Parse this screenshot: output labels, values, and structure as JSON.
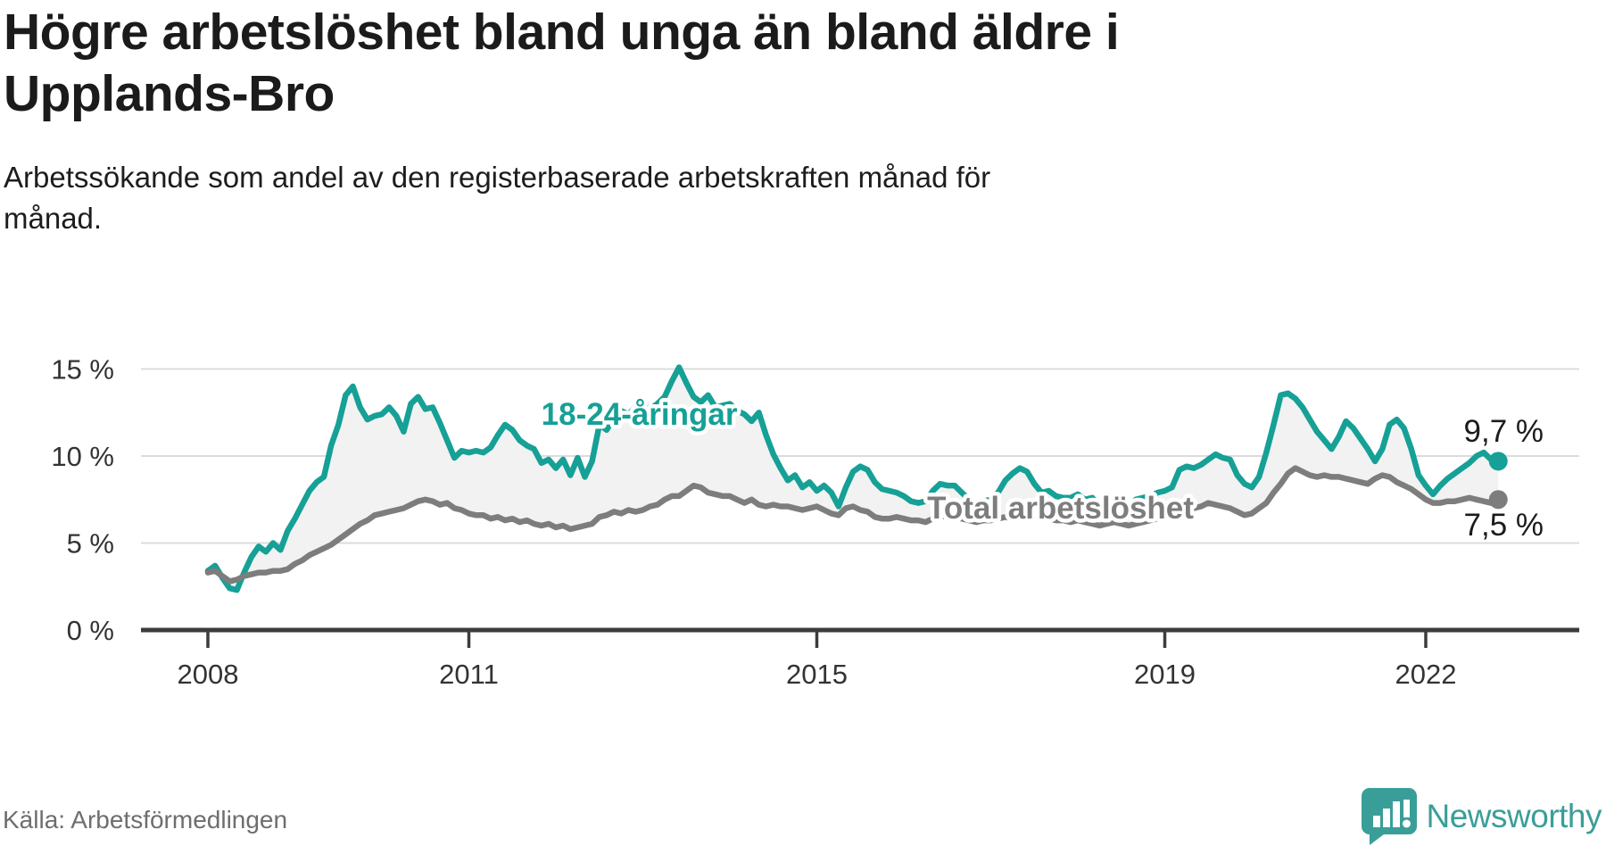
{
  "title_lines": [
    "Högre arbetslöshet bland unga än bland äldre i",
    "Upplands-Bro"
  ],
  "subtitle_lines": [
    "Arbetssökande som andel av den registerbaserade arbetskraften månad för",
    "månad."
  ],
  "source_text": "Källa: Arbetsförmedlingen",
  "brand": {
    "name": "Newsworthy",
    "color": "#3a9e98"
  },
  "chart_data": {
    "type": "line",
    "unit": "%",
    "x_start": {
      "year": 2008,
      "month": 1
    },
    "x_tick_years": [
      2008,
      2011,
      2015,
      2019,
      2022
    ],
    "x_tick_labels": [
      "2008",
      "2011",
      "2015",
      "2019",
      "2022"
    ],
    "y_ticks": [
      0,
      5,
      10,
      15
    ],
    "y_tick_labels": [
      "0 %",
      "5 %",
      "10 %",
      "15 %"
    ],
    "ylim": [
      0,
      16.5
    ],
    "grid": true,
    "legend_position": "inline-labels",
    "colors": {
      "grid": "#dcdcdc",
      "axis": "#3c3c3c",
      "tick_text": "#333333",
      "fill_between": "#f2f2f2",
      "value_text": "#1b1b1b"
    },
    "series": [
      {
        "name": "18-24-åringar",
        "color": "#16a096",
        "end_label": "9,7 %",
        "end_value": 9.7,
        "label": {
          "text": "18-24-åringar",
          "x_year": 2012.96,
          "y_value": 11.8
        },
        "values": [
          3.4,
          3.7,
          3.0,
          2.4,
          2.3,
          3.3,
          4.2,
          4.8,
          4.5,
          5.0,
          4.6,
          5.7,
          6.4,
          7.2,
          8.0,
          8.5,
          8.8,
          10.6,
          11.8,
          13.5,
          14.0,
          12.8,
          12.1,
          12.3,
          12.4,
          12.8,
          12.3,
          11.4,
          13.0,
          13.4,
          12.7,
          12.8,
          11.9,
          10.9,
          9.9,
          10.3,
          10.2,
          10.3,
          10.2,
          10.5,
          11.2,
          11.8,
          11.5,
          10.9,
          10.6,
          10.4,
          9.6,
          9.8,
          9.3,
          9.8,
          8.9,
          9.9,
          8.8,
          9.7,
          11.8,
          11.5,
          12.2,
          12.6,
          12.4,
          12.8,
          12.9,
          12.7,
          13.0,
          13.4,
          14.3,
          15.1,
          14.2,
          13.4,
          13.1,
          13.5,
          12.8,
          12.9,
          13.0,
          12.6,
          12.4,
          12.0,
          12.5,
          11.2,
          10.1,
          9.3,
          8.6,
          8.9,
          8.2,
          8.5,
          8.0,
          8.3,
          7.9,
          7.1,
          8.2,
          9.1,
          9.4,
          9.2,
          8.5,
          8.1,
          8.0,
          7.9,
          7.7,
          7.4,
          7.3,
          7.4,
          8.0,
          8.4,
          8.3,
          8.3,
          7.9,
          7.5,
          7.3,
          7.4,
          7.5,
          7.9,
          8.6,
          9.0,
          9.3,
          9.1,
          8.4,
          7.9,
          8.0,
          7.7,
          7.6,
          7.6,
          7.8,
          7.5,
          7.6,
          7.1,
          7.4,
          7.3,
          7.0,
          7.1,
          7.5,
          7.6,
          7.7,
          7.9,
          8.0,
          8.2,
          9.2,
          9.4,
          9.3,
          9.5,
          9.8,
          10.1,
          9.9,
          9.8,
          8.9,
          8.4,
          8.2,
          8.8,
          10.2,
          11.8,
          13.5,
          13.6,
          13.3,
          12.8,
          12.1,
          11.4,
          10.9,
          10.4,
          11.1,
          12.0,
          11.6,
          11.0,
          10.4,
          9.7,
          10.4,
          11.8,
          12.1,
          11.6,
          10.4,
          8.9,
          8.3,
          7.8,
          8.3,
          8.7,
          9.0,
          9.3,
          9.6,
          10.0,
          10.2,
          9.8,
          9.7
        ]
      },
      {
        "name": "Total arbetslöshet",
        "color": "#7d7d7d",
        "end_label": "7,5 %",
        "end_value": 7.5,
        "label": {
          "text": "Total arbetslöshet",
          "x_year": 2017.8,
          "y_value": 6.4
        },
        "values": [
          3.3,
          3.4,
          3.1,
          2.8,
          2.9,
          3.1,
          3.2,
          3.3,
          3.3,
          3.4,
          3.4,
          3.5,
          3.8,
          4.0,
          4.3,
          4.5,
          4.7,
          4.9,
          5.2,
          5.5,
          5.8,
          6.1,
          6.3,
          6.6,
          6.7,
          6.8,
          6.9,
          7.0,
          7.2,
          7.4,
          7.5,
          7.4,
          7.2,
          7.3,
          7.0,
          6.9,
          6.7,
          6.6,
          6.6,
          6.4,
          6.5,
          6.3,
          6.4,
          6.2,
          6.3,
          6.1,
          6.0,
          6.1,
          5.9,
          6.0,
          5.8,
          5.9,
          6.0,
          6.1,
          6.5,
          6.6,
          6.8,
          6.7,
          6.9,
          6.8,
          6.9,
          7.1,
          7.2,
          7.5,
          7.7,
          7.7,
          8.0,
          8.3,
          8.2,
          7.9,
          7.8,
          7.7,
          7.7,
          7.5,
          7.3,
          7.5,
          7.2,
          7.1,
          7.2,
          7.1,
          7.1,
          7.0,
          6.9,
          7.0,
          7.1,
          6.9,
          6.7,
          6.6,
          7.0,
          7.1,
          6.9,
          6.8,
          6.5,
          6.4,
          6.4,
          6.5,
          6.4,
          6.3,
          6.3,
          6.2,
          6.4,
          6.5,
          6.6,
          6.5,
          6.4,
          6.3,
          6.2,
          6.3,
          6.3,
          6.4,
          6.5,
          6.4,
          6.6,
          6.7,
          6.6,
          6.5,
          6.4,
          6.3,
          6.3,
          6.2,
          6.3,
          6.2,
          6.1,
          6.0,
          6.1,
          6.2,
          6.1,
          6.0,
          6.1,
          6.2,
          6.3,
          6.4,
          6.5,
          6.6,
          6.8,
          6.9,
          7.0,
          7.1,
          7.3,
          7.2,
          7.1,
          7.0,
          6.8,
          6.6,
          6.7,
          7.0,
          7.3,
          7.9,
          8.4,
          9.0,
          9.3,
          9.1,
          8.9,
          8.8,
          8.9,
          8.8,
          8.8,
          8.7,
          8.6,
          8.5,
          8.4,
          8.7,
          8.9,
          8.8,
          8.5,
          8.3,
          8.1,
          7.8,
          7.5,
          7.3,
          7.3,
          7.4,
          7.4,
          7.5,
          7.6,
          7.5,
          7.4,
          7.3,
          7.5
        ]
      }
    ]
  }
}
